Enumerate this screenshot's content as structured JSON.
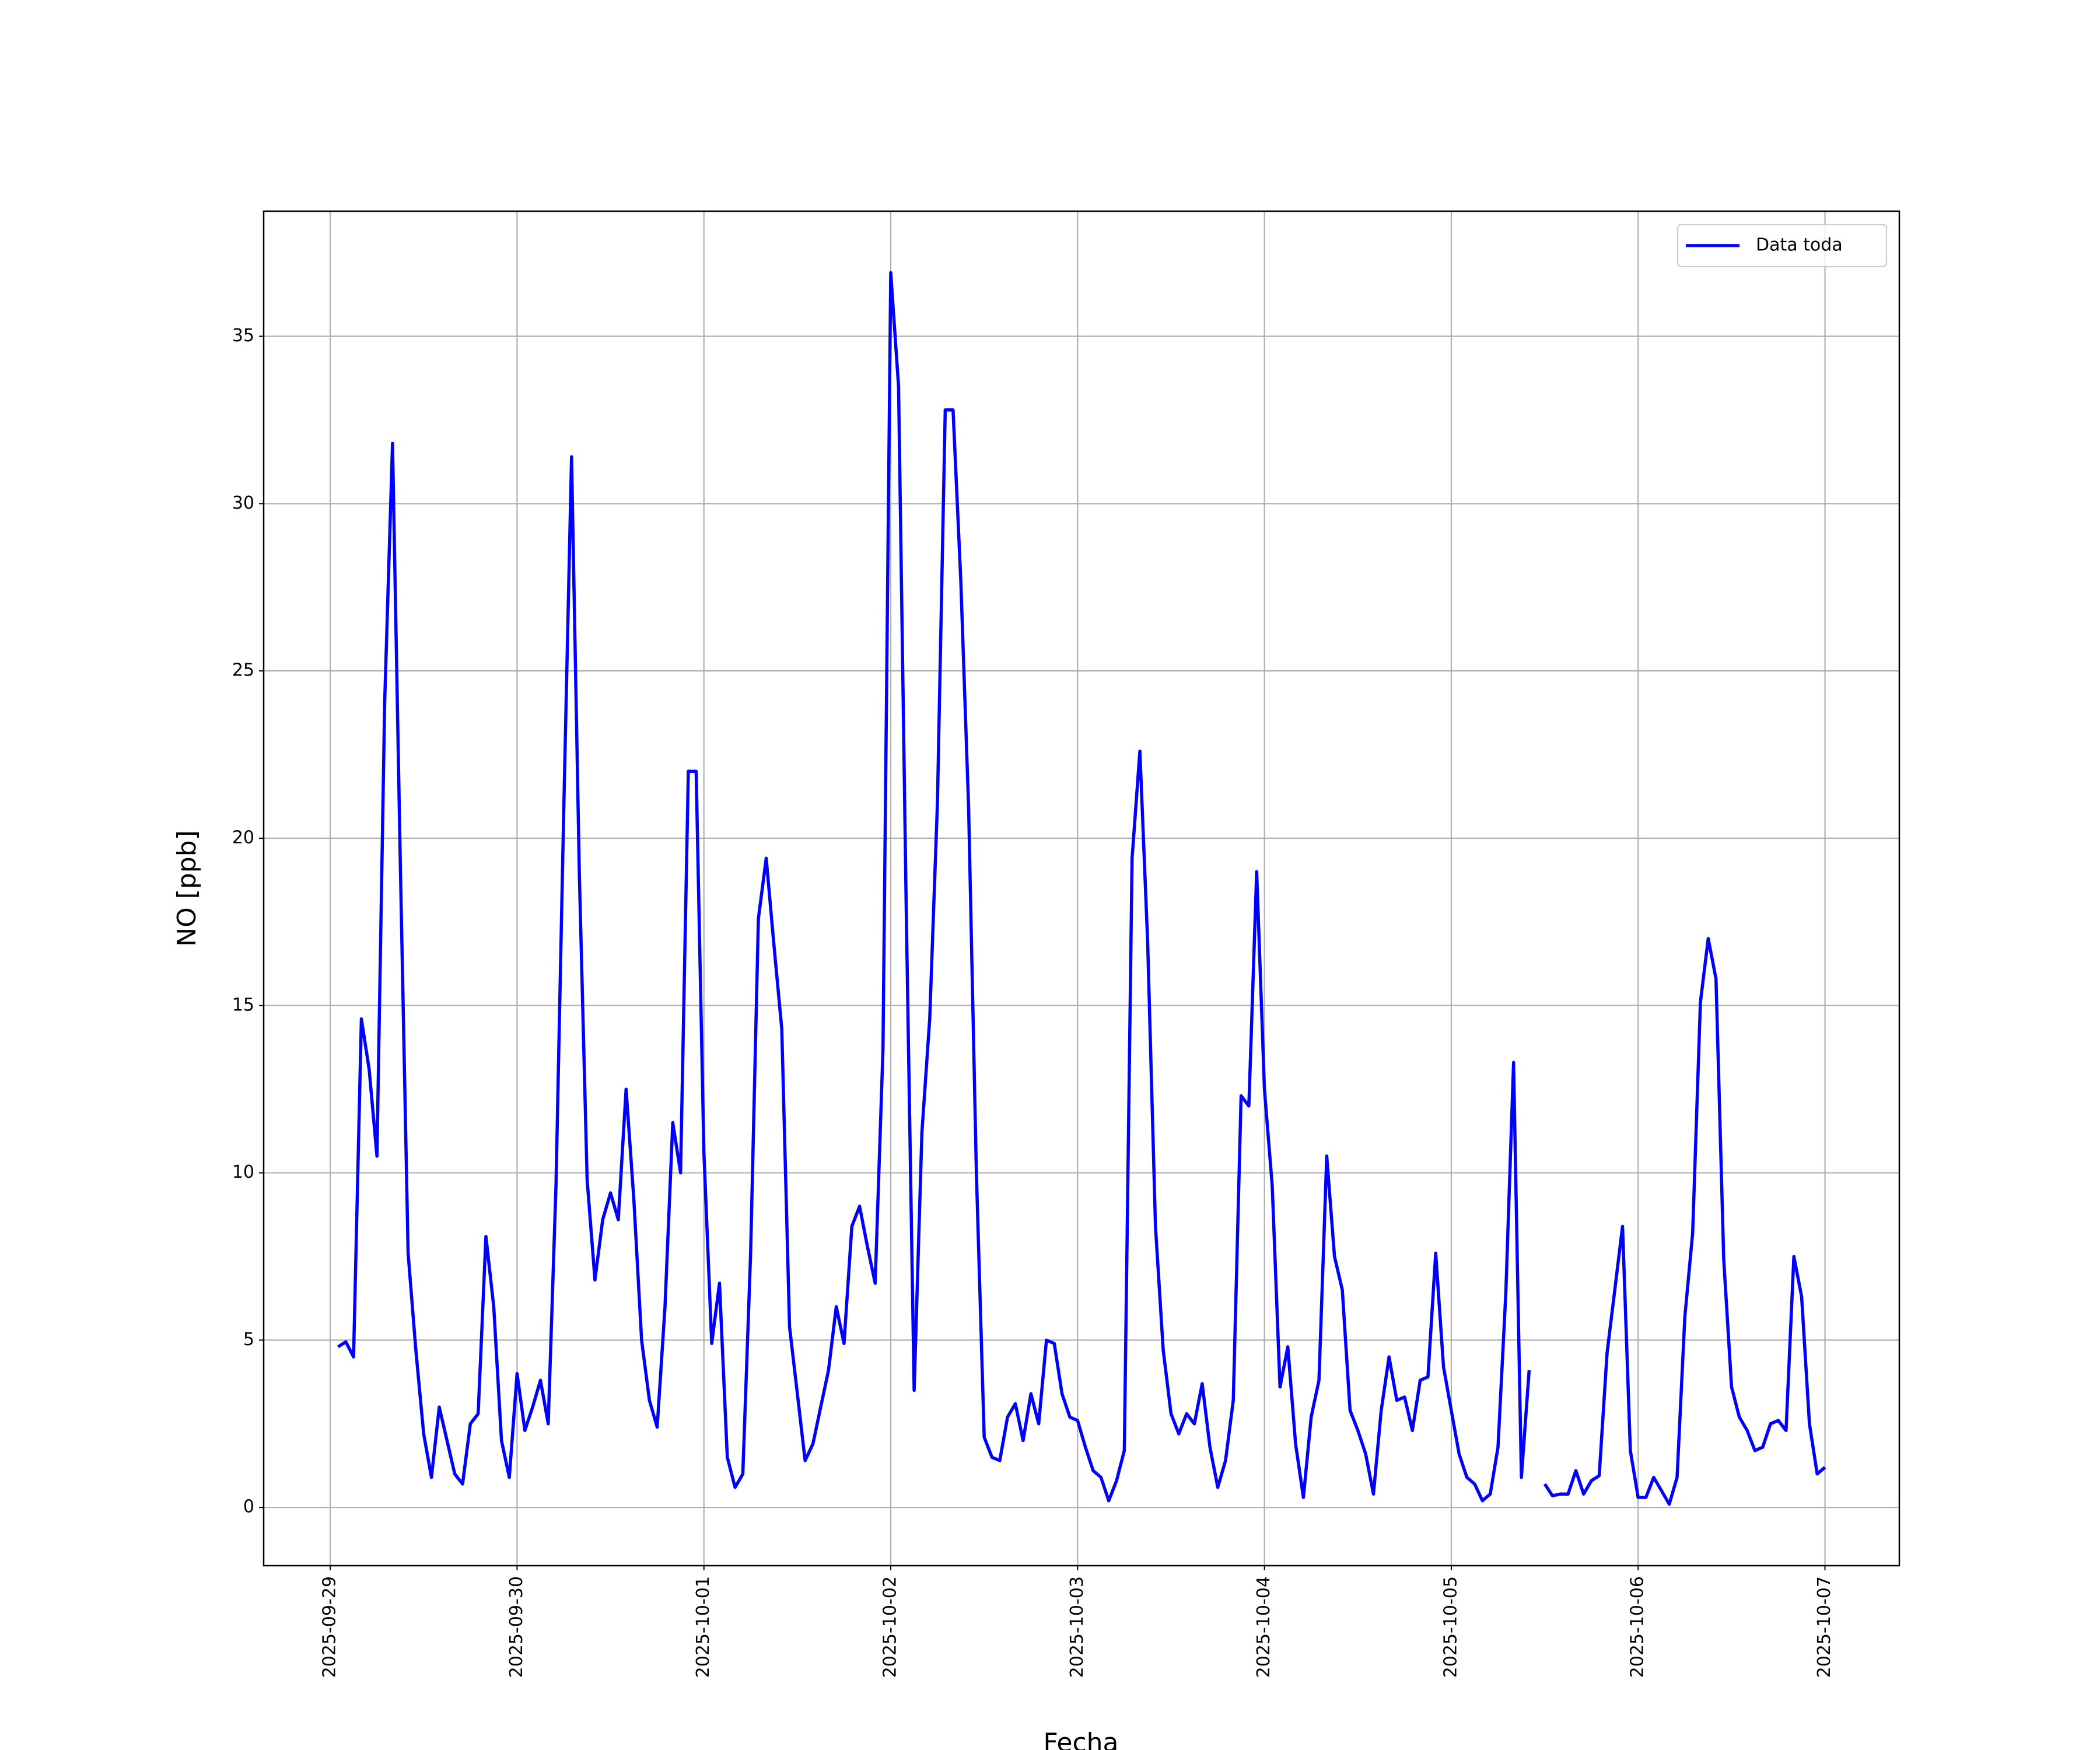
{
  "chart_data": {
    "type": "line",
    "xlabel": "Fecha",
    "ylabel": "NO [ppb]",
    "x": [
      "2025-09-29T01:00",
      "2025-09-29T02:00",
      "2025-09-29T03:00",
      "2025-09-29T04:00",
      "2025-09-29T05:00",
      "2025-09-29T06:00",
      "2025-09-29T07:00",
      "2025-09-29T08:00",
      "2025-09-29T09:00",
      "2025-09-29T10:00",
      "2025-09-29T11:00",
      "2025-09-29T12:00",
      "2025-09-29T13:00",
      "2025-09-29T14:00",
      "2025-09-29T15:00",
      "2025-09-29T16:00",
      "2025-09-29T17:00",
      "2025-09-29T18:00",
      "2025-09-29T19:00",
      "2025-09-29T20:00",
      "2025-09-29T21:00",
      "2025-09-29T22:00",
      "2025-09-29T23:00",
      "2025-09-30T00:00",
      "2025-09-30T01:00",
      "2025-09-30T02:00",
      "2025-09-30T03:00",
      "2025-09-30T04:00",
      "2025-09-30T05:00",
      "2025-09-30T06:00",
      "2025-09-30T07:00",
      "2025-09-30T08:00",
      "2025-09-30T09:00",
      "2025-09-30T10:00",
      "2025-09-30T11:00",
      "2025-09-30T12:00",
      "2025-09-30T13:00",
      "2025-09-30T14:00",
      "2025-09-30T15:00",
      "2025-09-30T16:00",
      "2025-09-30T17:00",
      "2025-09-30T18:00",
      "2025-09-30T19:00",
      "2025-09-30T20:00",
      "2025-09-30T21:00",
      "2025-09-30T22:00",
      "2025-09-30T23:00",
      "2025-10-01T00:00",
      "2025-10-01T01:00",
      "2025-10-01T02:00",
      "2025-10-01T03:00",
      "2025-10-01T04:00",
      "2025-10-01T05:00",
      "2025-10-01T06:00",
      "2025-10-01T07:00",
      "2025-10-01T08:00",
      "2025-10-01T09:00",
      "2025-10-01T10:00",
      "2025-10-01T11:00",
      "2025-10-01T12:00",
      "2025-10-01T13:00",
      "2025-10-01T14:00",
      "2025-10-01T15:00",
      "2025-10-01T16:00",
      "2025-10-01T17:00",
      "2025-10-01T18:00",
      "2025-10-01T19:00",
      "2025-10-01T20:00",
      "2025-10-01T21:00",
      "2025-10-01T22:00",
      "2025-10-01T23:00",
      "2025-10-02T00:00",
      "2025-10-02T01:00",
      "2025-10-02T02:00",
      "2025-10-02T03:00",
      "2025-10-02T04:00",
      "2025-10-02T05:00",
      "2025-10-02T06:00",
      "2025-10-02T07:00",
      "2025-10-02T08:00",
      "2025-10-02T09:00",
      "2025-10-02T10:00",
      "2025-10-02T11:00",
      "2025-10-02T12:00",
      "2025-10-02T13:00",
      "2025-10-02T14:00",
      "2025-10-02T15:00",
      "2025-10-02T16:00",
      "2025-10-02T17:00",
      "2025-10-02T18:00",
      "2025-10-02T19:00",
      "2025-10-02T20:00",
      "2025-10-02T21:00",
      "2025-10-02T22:00",
      "2025-10-02T23:00",
      "2025-10-03T00:00",
      "2025-10-03T01:00",
      "2025-10-03T02:00",
      "2025-10-03T03:00",
      "2025-10-03T04:00",
      "2025-10-03T05:00",
      "2025-10-03T06:00",
      "2025-10-03T07:00",
      "2025-10-03T08:00",
      "2025-10-03T09:00",
      "2025-10-03T10:00",
      "2025-10-03T11:00",
      "2025-10-03T12:00",
      "2025-10-03T13:00",
      "2025-10-03T14:00",
      "2025-10-03T15:00",
      "2025-10-03T16:00",
      "2025-10-03T17:00",
      "2025-10-03T18:00",
      "2025-10-03T19:00",
      "2025-10-03T20:00",
      "2025-10-03T21:00",
      "2025-10-03T22:00",
      "2025-10-03T23:00",
      "2025-10-04T00:00",
      "2025-10-04T01:00",
      "2025-10-04T02:00",
      "2025-10-04T03:00",
      "2025-10-04T04:00",
      "2025-10-04T05:00",
      "2025-10-04T06:00",
      "2025-10-04T07:00",
      "2025-10-04T08:00",
      "2025-10-04T09:00",
      "2025-10-04T10:00",
      "2025-10-04T11:00",
      "2025-10-04T12:00",
      "2025-10-04T13:00",
      "2025-10-04T14:00",
      "2025-10-04T15:00",
      "2025-10-04T16:00",
      "2025-10-04T17:00",
      "2025-10-04T18:00",
      "2025-10-04T19:00",
      "2025-10-04T20:00",
      "2025-10-04T21:00",
      "2025-10-04T22:00",
      "2025-10-04T23:00",
      "2025-10-05T00:00",
      "2025-10-05T01:00",
      "2025-10-05T02:00",
      "2025-10-05T03:00",
      "2025-10-05T04:00",
      "2025-10-05T05:00",
      "2025-10-05T06:00",
      "2025-10-05T07:00",
      "2025-10-05T08:00",
      "2025-10-05T09:00",
      "2025-10-05T10:00",
      "2025-10-05T11:00",
      "2025-10-05T12:00",
      "2025-10-05T13:00",
      "2025-10-05T14:00",
      "2025-10-05T15:00",
      "2025-10-05T16:00",
      "2025-10-05T17:00",
      "2025-10-05T18:00",
      "2025-10-05T19:00",
      "2025-10-05T20:00",
      "2025-10-05T21:00",
      "2025-10-05T22:00",
      "2025-10-05T23:00",
      "2025-10-06T00:00",
      "2025-10-06T01:00",
      "2025-10-06T02:00",
      "2025-10-06T03:00",
      "2025-10-06T04:00",
      "2025-10-06T05:00",
      "2025-10-06T06:00",
      "2025-10-06T07:00",
      "2025-10-06T08:00",
      "2025-10-06T09:00",
      "2025-10-06T10:00",
      "2025-10-06T11:00",
      "2025-10-06T12:00",
      "2025-10-06T13:00",
      "2025-10-06T14:00",
      "2025-10-06T15:00",
      "2025-10-06T16:00",
      "2025-10-06T17:00",
      "2025-10-06T18:00",
      "2025-10-06T19:00",
      "2025-10-06T20:00",
      "2025-10-06T21:00",
      "2025-10-06T22:00",
      "2025-10-06T23:00",
      "2025-10-07T00:00"
    ],
    "series": [
      {
        "name": "Data toda",
        "color": "#0000ff",
        "values": [
          4.8,
          4.95,
          4.5,
          14.6,
          13.1,
          10.5,
          24.1,
          31.8,
          19.3,
          7.6,
          4.7,
          2.2,
          0.9,
          3.0,
          2.0,
          1.0,
          0.7,
          2.5,
          2.8,
          8.1,
          6.0,
          2.0,
          0.9,
          4.0,
          2.3,
          3.0,
          3.8,
          2.5,
          9.6,
          20.9,
          31.4,
          18.9,
          9.8,
          6.8,
          8.6,
          9.4,
          8.6,
          12.5,
          9.2,
          5.0,
          3.2,
          2.4,
          6.0,
          11.5,
          10.0,
          22.0,
          22.0,
          10.6,
          4.9,
          6.7,
          1.5,
          0.6,
          1.0,
          7.6,
          17.6,
          19.4,
          16.8,
          14.3,
          5.4,
          3.4,
          1.4,
          1.9,
          3.0,
          4.1,
          6.0,
          4.9,
          8.4,
          9.0,
          7.8,
          6.7,
          13.7,
          36.9,
          33.5,
          17.7,
          3.5,
          11.2,
          14.6,
          21.1,
          32.8,
          32.8,
          27.7,
          20.9,
          10.0,
          2.1,
          1.5,
          1.4,
          2.7,
          3.1,
          2.0,
          3.4,
          2.5,
          5.0,
          4.9,
          3.4,
          2.7,
          2.6,
          1.8,
          1.1,
          0.9,
          0.2,
          0.8,
          1.7,
          19.4,
          22.6,
          16.9,
          8.4,
          4.7,
          2.8,
          2.2,
          2.8,
          2.5,
          3.7,
          1.8,
          0.6,
          1.4,
          3.2,
          12.3,
          12.0,
          19.0,
          12.5,
          9.6,
          3.6,
          4.8,
          1.9,
          0.3,
          2.7,
          3.8,
          10.5,
          7.5,
          6.5,
          2.9,
          2.3,
          1.6,
          0.4,
          2.9,
          4.5,
          3.2,
          3.3,
          2.3,
          3.8,
          3.9,
          7.6,
          4.2,
          2.9,
          1.6,
          0.9,
          0.7,
          0.2,
          0.4,
          1.8,
          6.4,
          13.3,
          0.9,
          4.1,
          null,
          0.7,
          0.35,
          0.4,
          0.4,
          1.1,
          0.4,
          0.8,
          0.95,
          4.6,
          6.5,
          8.4,
          1.7,
          0.3,
          0.3,
          0.9,
          0.5,
          0.1,
          0.9,
          5.7,
          8.2,
          15.1,
          17.0,
          15.8,
          7.4,
          3.6,
          2.7,
          2.3,
          1.7,
          1.8,
          2.5,
          2.6,
          2.3,
          7.5,
          6.3,
          2.5,
          1.0,
          1.2
        ]
      }
    ],
    "xlim": [
      "2025-09-28T15:27",
      "2025-10-07T09:33"
    ],
    "xticks": [
      "2025-09-29",
      "2025-09-30",
      "2025-10-01",
      "2025-10-02",
      "2025-10-03",
      "2025-10-04",
      "2025-10-05",
      "2025-10-06",
      "2025-10-07"
    ],
    "ylim": [
      -1.74,
      38.74
    ],
    "yticks": [
      0,
      5,
      10,
      15,
      20,
      25,
      30,
      35
    ],
    "grid": true,
    "legend": "upper right"
  }
}
